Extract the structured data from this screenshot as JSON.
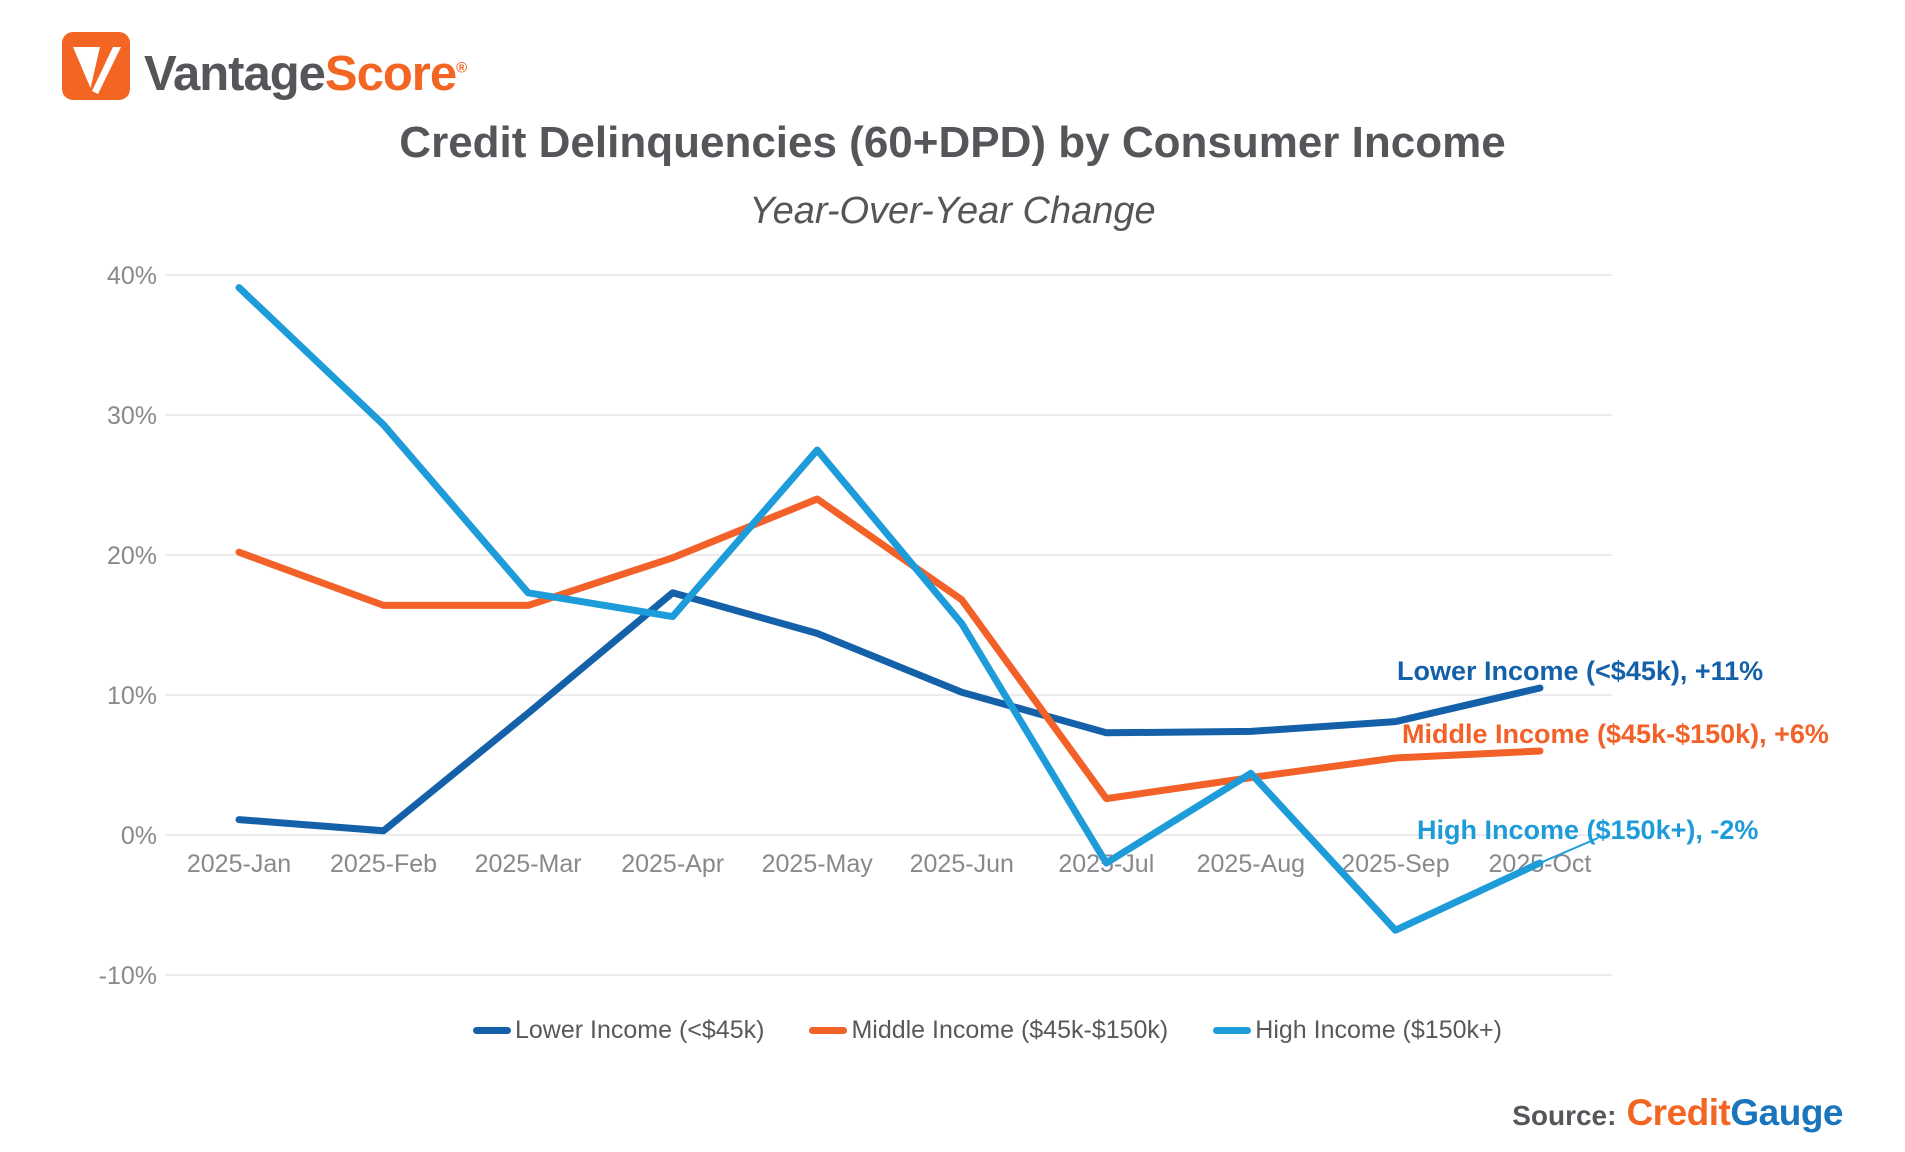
{
  "logo": {
    "name_part_gray": "Vantage",
    "name_part_orange": "Score",
    "registered_mark": "®",
    "gray_color": "#54565a",
    "orange_color": "#f26522"
  },
  "header": {
    "title": "Credit Delinquencies (60+DPD) by Consumer Income",
    "subtitle": "Year-Over-Year Change"
  },
  "chart_data": {
    "type": "line",
    "title": "Credit Delinquencies (60+DPD) by Consumer Income",
    "subtitle": "Year-Over-Year Change",
    "x_categories": [
      "2025-Jan",
      "2025-Feb",
      "2025-Mar",
      "2025-Apr",
      "2025-May",
      "2025-Jun",
      "2025-Jul",
      "2025-Aug",
      "2025-Sep",
      "2025-Oct"
    ],
    "y_axis": {
      "unit": "%",
      "min": -10,
      "max": 40,
      "tick_step": 10,
      "tick_labels": [
        "40%",
        "30%",
        "20%",
        "10%",
        "0%",
        "-10%"
      ]
    },
    "grid": "horizontal",
    "gridline_color": "#ececec",
    "axis_text_color": "#87898c",
    "legend_position": "bottom",
    "series": [
      {
        "id": "lower-income",
        "name": "Lower Income (<$45k)",
        "color": "#1460a9",
        "values": [
          1.1,
          0.3,
          8.7,
          17.3,
          14.4,
          10.2,
          7.3,
          7.4,
          8.1,
          10.5
        ],
        "end_annotation": "Lower Income (<$45k), +11%"
      },
      {
        "id": "middle-income",
        "name": "Middle Income ($45k-$150k)",
        "color": "#f26127",
        "values": [
          20.2,
          16.4,
          16.4,
          19.8,
          24.0,
          16.8,
          2.6,
          4.1,
          5.5,
          6.0
        ],
        "end_annotation": "Middle Income ($45k-$150k), +6%"
      },
      {
        "id": "high-income",
        "name": "High Income ($150k+)",
        "color": "#1d9cd9",
        "values": [
          39.1,
          29.3,
          17.3,
          15.6,
          27.5,
          15.1,
          -2.0,
          4.4,
          -6.8,
          -2.0
        ],
        "end_annotation": "High Income ($150k+), -2%"
      }
    ]
  },
  "source": {
    "label": "Source:",
    "brand": [
      {
        "text": "Credit",
        "color": "#f26522"
      },
      {
        "text": "Gauge",
        "color": "#1b75bc"
      }
    ]
  }
}
